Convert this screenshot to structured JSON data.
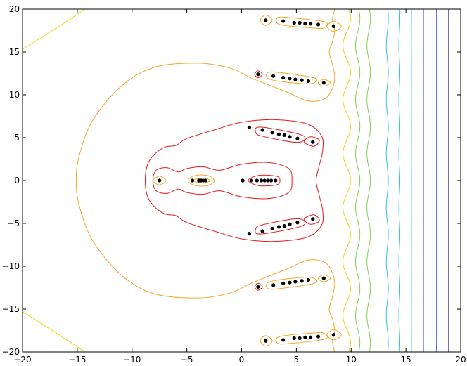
{
  "chart_data": {
    "type": "contour",
    "title": "",
    "xlabel": "",
    "ylabel": "",
    "xlim": [
      -20,
      20
    ],
    "ylim": [
      -20,
      20
    ],
    "grid": false,
    "x_ticks": [
      -20,
      -15,
      -10,
      -5,
      0,
      5,
      10,
      15,
      20
    ],
    "y_ticks": [
      -20,
      -15,
      -10,
      -5,
      0,
      5,
      10,
      15,
      20
    ],
    "x_tick_labels": [
      "−20",
      "−15",
      "−10",
      "−5",
      "0",
      "5",
      "10",
      "15",
      "20"
    ],
    "y_tick_labels": [
      "−20",
      "−15",
      "−10",
      "−5",
      "0",
      "5",
      "10",
      "15",
      "20"
    ],
    "colors": {
      "dots": "#000000",
      "red": "#e41a1c",
      "orange": "#f5a623",
      "yellow": "#e6d80a",
      "green": "#7fd14b",
      "cyan": "#2ec4e6",
      "blue": "#2f4fd0",
      "navy": "#202060"
    },
    "points": [
      [
        -7.5,
        0
      ],
      [
        -4.5,
        0
      ],
      [
        -3.9,
        0
      ],
      [
        -3.7,
        0
      ],
      [
        -3.5,
        0
      ],
      [
        -3.3,
        0
      ],
      [
        0.1,
        0
      ],
      [
        0.9,
        0
      ],
      [
        1.4,
        0
      ],
      [
        1.8,
        0
      ],
      [
        2.1,
        0
      ],
      [
        2.4,
        0
      ],
      [
        2.7,
        0
      ],
      [
        3.1,
        0
      ],
      [
        0.7,
        6.2
      ],
      [
        1.9,
        5.9
      ],
      [
        2.8,
        5.6
      ],
      [
        3.4,
        5.4
      ],
      [
        3.9,
        5.3
      ],
      [
        4.4,
        5.1
      ],
      [
        5.1,
        4.9
      ],
      [
        6.5,
        4.5
      ],
      [
        1.5,
        12.4
      ],
      [
        2.9,
        12.2
      ],
      [
        3.8,
        12.0
      ],
      [
        4.4,
        11.9
      ],
      [
        4.9,
        11.8
      ],
      [
        5.5,
        11.7
      ],
      [
        6.1,
        11.6
      ],
      [
        7.5,
        11.4
      ],
      [
        2.2,
        18.7
      ],
      [
        3.8,
        18.6
      ],
      [
        4.8,
        18.4
      ],
      [
        5.3,
        18.4
      ],
      [
        5.8,
        18.3
      ],
      [
        6.3,
        18.3
      ],
      [
        7.0,
        18.2
      ],
      [
        8.4,
        18.0
      ],
      [
        0.7,
        -6.2
      ],
      [
        1.9,
        -5.9
      ],
      [
        2.8,
        -5.6
      ],
      [
        3.4,
        -5.4
      ],
      [
        3.9,
        -5.3
      ],
      [
        4.4,
        -5.1
      ],
      [
        5.1,
        -4.9
      ],
      [
        6.5,
        -4.5
      ],
      [
        1.5,
        -12.4
      ],
      [
        2.9,
        -12.2
      ],
      [
        3.8,
        -12.0
      ],
      [
        4.4,
        -11.9
      ],
      [
        4.9,
        -11.8
      ],
      [
        5.5,
        -11.7
      ],
      [
        6.1,
        -11.6
      ],
      [
        7.5,
        -11.4
      ],
      [
        2.2,
        -18.7
      ],
      [
        3.8,
        -18.6
      ],
      [
        4.8,
        -18.4
      ],
      [
        5.3,
        -18.4
      ],
      [
        5.8,
        -18.3
      ],
      [
        6.3,
        -18.3
      ],
      [
        7.0,
        -18.2
      ],
      [
        8.4,
        -18.0
      ]
    ],
    "vertical_contours": [
      {
        "x": 10.6,
        "color": "green"
      },
      {
        "x": 11.6,
        "color": "green"
      },
      {
        "x": 13.3,
        "color": "cyan"
      },
      {
        "x": 14.4,
        "color": "cyan"
      },
      {
        "x": 15.5,
        "color": "cyan"
      },
      {
        "x": 16.6,
        "color": "blue"
      },
      {
        "x": 17.8,
        "color": "blue"
      },
      {
        "x": 18.9,
        "color": "navy"
      }
    ],
    "wavy_contours": [
      {
        "x": 9.6,
        "amp": 0.35,
        "color": "yellow"
      }
    ],
    "corner_contours": [
      {
        "from": [
          -20,
          15.3
        ],
        "ctrl": [
          -16,
          18.5
        ],
        "to": [
          -14.3,
          20
        ],
        "color": "yellow"
      },
      {
        "from": [
          -20,
          -15.3
        ],
        "ctrl": [
          -16,
          -18.5
        ],
        "to": [
          -14.3,
          -20
        ],
        "color": "yellow"
      }
    ],
    "closed_contours": [
      {
        "color": "orange",
        "pts": [
          [
            8.5,
            20
          ],
          [
            8.3,
            18.8
          ],
          [
            8.5,
            17.5
          ],
          [
            8.3,
            16.2
          ],
          [
            8.0,
            15.0
          ],
          [
            8.3,
            13.5
          ],
          [
            8.5,
            12.0
          ],
          [
            8.2,
            10.5
          ],
          [
            7.5,
            9.5
          ],
          [
            6,
            9.3
          ],
          [
            4,
            10.4
          ],
          [
            1,
            11.9
          ],
          [
            -1,
            13.1
          ],
          [
            -4,
            13.7
          ],
          [
            -8,
            13.2
          ],
          [
            -11,
            11
          ],
          [
            -13.6,
            7
          ],
          [
            -14.8,
            3
          ],
          [
            -15.1,
            0
          ],
          [
            -14.8,
            -3
          ],
          [
            -13.6,
            -7
          ],
          [
            -11,
            -11
          ],
          [
            -8,
            -13.2
          ],
          [
            -4,
            -13.7
          ],
          [
            -1,
            -13.1
          ],
          [
            1,
            -11.9
          ],
          [
            4,
            -10.4
          ],
          [
            6,
            -9.3
          ],
          [
            7.5,
            -9.5
          ],
          [
            8.2,
            -10.5
          ],
          [
            8.5,
            -12.0
          ],
          [
            8.3,
            -13.5
          ],
          [
            8.0,
            -15.0
          ],
          [
            8.3,
            -16.2
          ],
          [
            8.5,
            -17.5
          ],
          [
            8.3,
            -18.8
          ],
          [
            8.5,
            -20
          ]
        ],
        "closed": false
      },
      {
        "color": "red",
        "pts": [
          [
            -8.8,
            0
          ],
          [
            -8.6,
            1.8
          ],
          [
            -8,
            3
          ],
          [
            -7,
            3.9
          ],
          [
            -6,
            4.1
          ],
          [
            -5,
            4.9
          ],
          [
            -2.5,
            5.9
          ],
          [
            0,
            6.8
          ],
          [
            3,
            7.1
          ],
          [
            6,
            6.6
          ],
          [
            7.3,
            5.2
          ],
          [
            7.4,
            3.5
          ],
          [
            7.1,
            1.8
          ],
          [
            6.8,
            0
          ],
          [
            7.1,
            -1.8
          ],
          [
            7.4,
            -3.5
          ],
          [
            7.3,
            -5.2
          ],
          [
            6,
            -6.6
          ],
          [
            3,
            -7.1
          ],
          [
            0,
            -6.8
          ],
          [
            -2.5,
            -5.9
          ],
          [
            -5,
            -4.9
          ],
          [
            -6,
            -4.1
          ],
          [
            -7,
            -3.9
          ],
          [
            -8,
            -3
          ],
          [
            -8.6,
            -1.8
          ]
        ],
        "closed": true
      },
      {
        "color": "red",
        "pts": [
          [
            -8.1,
            0
          ],
          [
            -7.8,
            1.2
          ],
          [
            -6.8,
            1.5
          ],
          [
            -5.8,
            1.0
          ],
          [
            -5.0,
            1.4
          ],
          [
            -3.5,
            1.6
          ],
          [
            -2,
            1.2
          ],
          [
            0,
            1.9
          ],
          [
            2.5,
            2.1
          ],
          [
            4.3,
            1.4
          ],
          [
            4.6,
            0
          ],
          [
            4.3,
            -1.4
          ],
          [
            2.5,
            -2.1
          ],
          [
            0,
            -1.9
          ],
          [
            -2,
            -1.2
          ],
          [
            -3.5,
            -1.6
          ],
          [
            -5.0,
            -1.4
          ],
          [
            -5.8,
            -1.0
          ],
          [
            -6.8,
            -1.5
          ],
          [
            -7.8,
            -1.2
          ]
        ],
        "closed": true
      },
      {
        "color": "orange",
        "pts": [
          [
            -8.1,
            0
          ],
          [
            -7.5,
            0.5
          ],
          [
            -6.9,
            0
          ],
          [
            -7.5,
            -0.5
          ]
        ],
        "closed": true
      },
      {
        "color": "orange",
        "pts": [
          [
            -4.9,
            0
          ],
          [
            -4.2,
            0.6
          ],
          [
            -3.0,
            0.55
          ],
          [
            -2.5,
            0
          ],
          [
            -3.0,
            -0.55
          ],
          [
            -4.2,
            -0.6
          ]
        ],
        "closed": true
      },
      {
        "color": "red",
        "pts": [
          [
            0.6,
            0
          ],
          [
            1.6,
            0.6
          ],
          [
            3.2,
            0.5
          ],
          [
            3.5,
            0
          ],
          [
            3.2,
            -0.5
          ],
          [
            1.6,
            -0.6
          ]
        ],
        "closed": true
      },
      {
        "color": "orange",
        "pts": [
          [
            -4.5,
            0
          ],
          [
            -3.5,
            0.3
          ],
          [
            -2.9,
            0
          ],
          [
            -3.5,
            -0.3
          ]
        ],
        "closed": true
      },
      {
        "color": "red",
        "pts": [
          [
            1.4,
            6.2
          ],
          [
            2.6,
            6.1
          ],
          [
            5.5,
            5.3
          ],
          [
            5.6,
            4.6
          ],
          [
            4.6,
            4.5
          ],
          [
            1.8,
            5.2
          ],
          [
            1.3,
            5.6
          ]
        ],
        "closed": true
      },
      {
        "color": "red",
        "pts": [
          [
            5.7,
            4.5
          ],
          [
            6.3,
            5.1
          ],
          [
            7.1,
            4.7
          ],
          [
            6.6,
            4.0
          ]
        ],
        "closed": true
      },
      {
        "color": "red",
        "pts": [
          [
            1.4,
            -6.2
          ],
          [
            2.6,
            -6.1
          ],
          [
            5.5,
            -5.3
          ],
          [
            5.6,
            -4.6
          ],
          [
            4.6,
            -4.5
          ],
          [
            1.8,
            -5.2
          ],
          [
            1.3,
            -5.6
          ]
        ],
        "closed": true
      },
      {
        "color": "red",
        "pts": [
          [
            5.7,
            -4.5
          ],
          [
            6.3,
            -5.1
          ],
          [
            7.1,
            -4.7
          ],
          [
            6.6,
            -4.0
          ]
        ],
        "closed": true
      },
      {
        "color": "red",
        "pts": [
          [
            1.2,
            12.4
          ],
          [
            1.5,
            12.8
          ],
          [
            1.9,
            12.4
          ],
          [
            1.5,
            12.0
          ]
        ],
        "closed": true
      },
      {
        "color": "orange",
        "pts": [
          [
            2.4,
            12.6
          ],
          [
            3.5,
            12.6
          ],
          [
            6.6,
            12.0
          ],
          [
            6.6,
            11.4
          ],
          [
            5.5,
            11.3
          ],
          [
            2.6,
            11.8
          ]
        ],
        "closed": true
      },
      {
        "color": "orange",
        "pts": [
          [
            7.0,
            11.4
          ],
          [
            7.5,
            11.8
          ],
          [
            8.1,
            11.4
          ],
          [
            7.5,
            11.0
          ]
        ],
        "closed": true
      },
      {
        "color": "red",
        "pts": [
          [
            1.2,
            -12.4
          ],
          [
            1.5,
            -12.8
          ],
          [
            1.9,
            -12.4
          ],
          [
            1.5,
            -12.0
          ]
        ],
        "closed": true
      },
      {
        "color": "orange",
        "pts": [
          [
            2.4,
            -12.6
          ],
          [
            3.5,
            -12.6
          ],
          [
            6.6,
            -12.0
          ],
          [
            6.6,
            -11.4
          ],
          [
            5.5,
            -11.3
          ],
          [
            2.6,
            -11.8
          ]
        ],
        "closed": true
      },
      {
        "color": "orange",
        "pts": [
          [
            7.0,
            -11.4
          ],
          [
            7.5,
            -11.8
          ],
          [
            8.1,
            -11.4
          ],
          [
            7.5,
            -11.0
          ]
        ],
        "closed": true
      },
      {
        "color": "orange",
        "pts": [
          [
            1.7,
            18.7
          ],
          [
            2.2,
            19.3
          ],
          [
            2.8,
            18.7
          ],
          [
            2.2,
            18.1
          ]
        ],
        "closed": true
      },
      {
        "color": "orange",
        "pts": [
          [
            3.3,
            19.0
          ],
          [
            4.5,
            19.0
          ],
          [
            7.6,
            18.5
          ],
          [
            7.5,
            17.8
          ],
          [
            6.5,
            17.8
          ],
          [
            3.5,
            18.2
          ]
        ],
        "closed": true
      },
      {
        "color": "orange",
        "pts": [
          [
            7.8,
            18.0
          ],
          [
            8.4,
            18.6
          ],
          [
            9.1,
            18.0
          ],
          [
            8.4,
            17.4
          ]
        ],
        "closed": true
      },
      {
        "color": "orange",
        "pts": [
          [
            1.7,
            -18.7
          ],
          [
            2.2,
            -19.3
          ],
          [
            2.8,
            -18.7
          ],
          [
            2.2,
            -18.1
          ]
        ],
        "closed": true
      },
      {
        "color": "orange",
        "pts": [
          [
            3.3,
            -19.0
          ],
          [
            4.5,
            -19.0
          ],
          [
            7.6,
            -18.5
          ],
          [
            7.5,
            -17.8
          ],
          [
            6.5,
            -17.8
          ],
          [
            3.5,
            -18.2
          ]
        ],
        "closed": true
      },
      {
        "color": "orange",
        "pts": [
          [
            7.8,
            -18.0
          ],
          [
            8.4,
            -18.6
          ],
          [
            9.1,
            -18.0
          ],
          [
            8.4,
            -17.4
          ]
        ],
        "closed": true
      }
    ]
  }
}
